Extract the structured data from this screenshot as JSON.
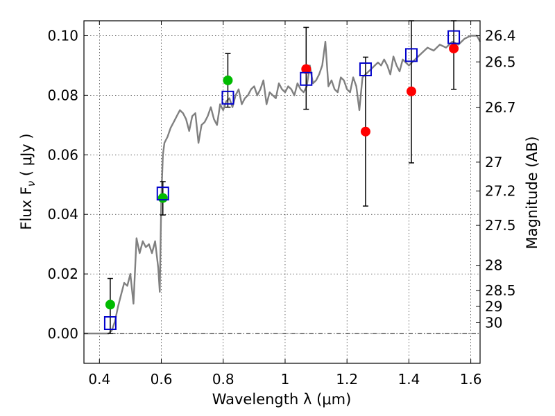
{
  "chart_data": {
    "type": "scatter",
    "title": "",
    "xlabel": "Wavelength  λ (μm)",
    "ylabel": "Flux  F",
    "ylabel_sub": "ν",
    "ylabel_unit": " ( μJy )",
    "y2label": "Magnitude (AB)",
    "xlim": [
      0.35,
      1.63
    ],
    "ylim": [
      -0.01,
      0.105
    ],
    "grid": true,
    "xticks": [
      0.4,
      0.6,
      0.8,
      1.0,
      1.2,
      1.4,
      1.6
    ],
    "xtick_labels": [
      "0.4",
      "0.6",
      "0.8",
      "1",
      "1.2",
      "1.4",
      "1.6"
    ],
    "yticks": [
      0.0,
      0.02,
      0.04,
      0.06,
      0.08,
      0.1
    ],
    "ytick_labels": [
      "0.00",
      "0.02",
      "0.04",
      "0.06",
      "0.08",
      "0.10"
    ],
    "mag_ticks": [
      {
        "label": "26.4",
        "mag": 26.4
      },
      {
        "label": "26.5",
        "mag": 26.5
      },
      {
        "label": "26.7",
        "mag": 26.7
      },
      {
        "label": "27",
        "mag": 27.0
      },
      {
        "label": "27.2",
        "mag": 27.2
      },
      {
        "label": "27.5",
        "mag": 27.5
      },
      {
        "label": "28",
        "mag": 28.0
      },
      {
        "label": "28.5",
        "mag": 28.5
      },
      {
        "label": "29",
        "mag": 29.0
      },
      {
        "label": "30",
        "mag": 30.0
      }
    ],
    "model_spectrum": {
      "name": "model SED",
      "color": "#808080",
      "x": [
        0.35,
        0.43,
        0.44,
        0.45,
        0.46,
        0.47,
        0.48,
        0.49,
        0.5,
        0.51,
        0.52,
        0.53,
        0.54,
        0.55,
        0.56,
        0.57,
        0.58,
        0.59,
        0.595,
        0.6,
        0.605,
        0.61,
        0.62,
        0.63,
        0.64,
        0.65,
        0.66,
        0.67,
        0.68,
        0.69,
        0.7,
        0.71,
        0.72,
        0.73,
        0.74,
        0.75,
        0.76,
        0.77,
        0.78,
        0.79,
        0.8,
        0.81,
        0.82,
        0.83,
        0.84,
        0.85,
        0.86,
        0.87,
        0.88,
        0.89,
        0.9,
        0.91,
        0.92,
        0.93,
        0.94,
        0.95,
        0.96,
        0.97,
        0.98,
        0.99,
        1.0,
        1.01,
        1.02,
        1.03,
        1.04,
        1.05,
        1.06,
        1.07,
        1.08,
        1.09,
        1.1,
        1.11,
        1.12,
        1.13,
        1.14,
        1.15,
        1.16,
        1.17,
        1.18,
        1.19,
        1.2,
        1.21,
        1.22,
        1.23,
        1.24,
        1.25,
        1.26,
        1.27,
        1.28,
        1.29,
        1.3,
        1.31,
        1.32,
        1.33,
        1.34,
        1.35,
        1.36,
        1.37,
        1.38,
        1.39,
        1.4,
        1.42,
        1.44,
        1.46,
        1.48,
        1.5,
        1.52,
        1.54,
        1.56,
        1.58,
        1.6,
        1.62,
        1.63
      ],
      "y": [
        0.0,
        0.0,
        0.001,
        0.004,
        0.009,
        0.013,
        0.017,
        0.016,
        0.02,
        0.01,
        0.032,
        0.027,
        0.031,
        0.029,
        0.03,
        0.027,
        0.031,
        0.022,
        0.014,
        0.045,
        0.06,
        0.064,
        0.066,
        0.069,
        0.071,
        0.073,
        0.075,
        0.074,
        0.072,
        0.068,
        0.073,
        0.074,
        0.064,
        0.07,
        0.071,
        0.073,
        0.076,
        0.072,
        0.07,
        0.077,
        0.075,
        0.078,
        0.079,
        0.076,
        0.08,
        0.082,
        0.077,
        0.079,
        0.08,
        0.082,
        0.083,
        0.08,
        0.082,
        0.085,
        0.077,
        0.081,
        0.08,
        0.079,
        0.084,
        0.082,
        0.081,
        0.083,
        0.082,
        0.08,
        0.084,
        0.082,
        0.081,
        0.083,
        0.09,
        0.084,
        0.085,
        0.087,
        0.09,
        0.098,
        0.083,
        0.085,
        0.082,
        0.081,
        0.086,
        0.085,
        0.082,
        0.081,
        0.086,
        0.083,
        0.075,
        0.086,
        0.087,
        0.088,
        0.089,
        0.09,
        0.091,
        0.09,
        0.092,
        0.09,
        0.087,
        0.093,
        0.09,
        0.088,
        0.092,
        0.091,
        0.09,
        0.092,
        0.094,
        0.096,
        0.095,
        0.097,
        0.096,
        0.098,
        0.097,
        0.099,
        0.1,
        0.1,
        0.098
      ]
    },
    "series": [
      {
        "name": "green points",
        "color": "#00bb00",
        "marker": "circle",
        "points": [
          {
            "x": 0.435,
            "y": 0.0097,
            "yerr_low": 0.0,
            "yerr_high": 0.0185
          },
          {
            "x": 0.605,
            "y": 0.0455,
            "yerr_low": 0.0398,
            "yerr_high": 0.051
          },
          {
            "x": 0.815,
            "y": 0.085,
            "yerr_low": 0.076,
            "yerr_high": 0.094
          }
        ]
      },
      {
        "name": "red points",
        "color": "#ff0000",
        "marker": "circle",
        "points": [
          {
            "x": 1.068,
            "y": 0.0888,
            "yerr_low": 0.0753,
            "yerr_high": 0.1028
          },
          {
            "x": 1.26,
            "y": 0.0678,
            "yerr_low": 0.0428,
            "yerr_high": 0.0928
          },
          {
            "x": 1.408,
            "y": 0.0813,
            "yerr_low": 0.0573,
            "yerr_high": 0.105
          },
          {
            "x": 1.545,
            "y": 0.0957,
            "yerr_low": 0.082,
            "yerr_high": 0.105
          }
        ]
      },
      {
        "name": "model photometry",
        "color": "#0000cc",
        "marker": "square-open",
        "points": [
          {
            "x": 0.435,
            "y": 0.0035
          },
          {
            "x": 0.605,
            "y": 0.047
          },
          {
            "x": 0.815,
            "y": 0.0792
          },
          {
            "x": 1.068,
            "y": 0.0855
          },
          {
            "x": 1.26,
            "y": 0.0887
          },
          {
            "x": 1.408,
            "y": 0.0935
          },
          {
            "x": 1.545,
            "y": 0.0995
          }
        ]
      }
    ]
  }
}
